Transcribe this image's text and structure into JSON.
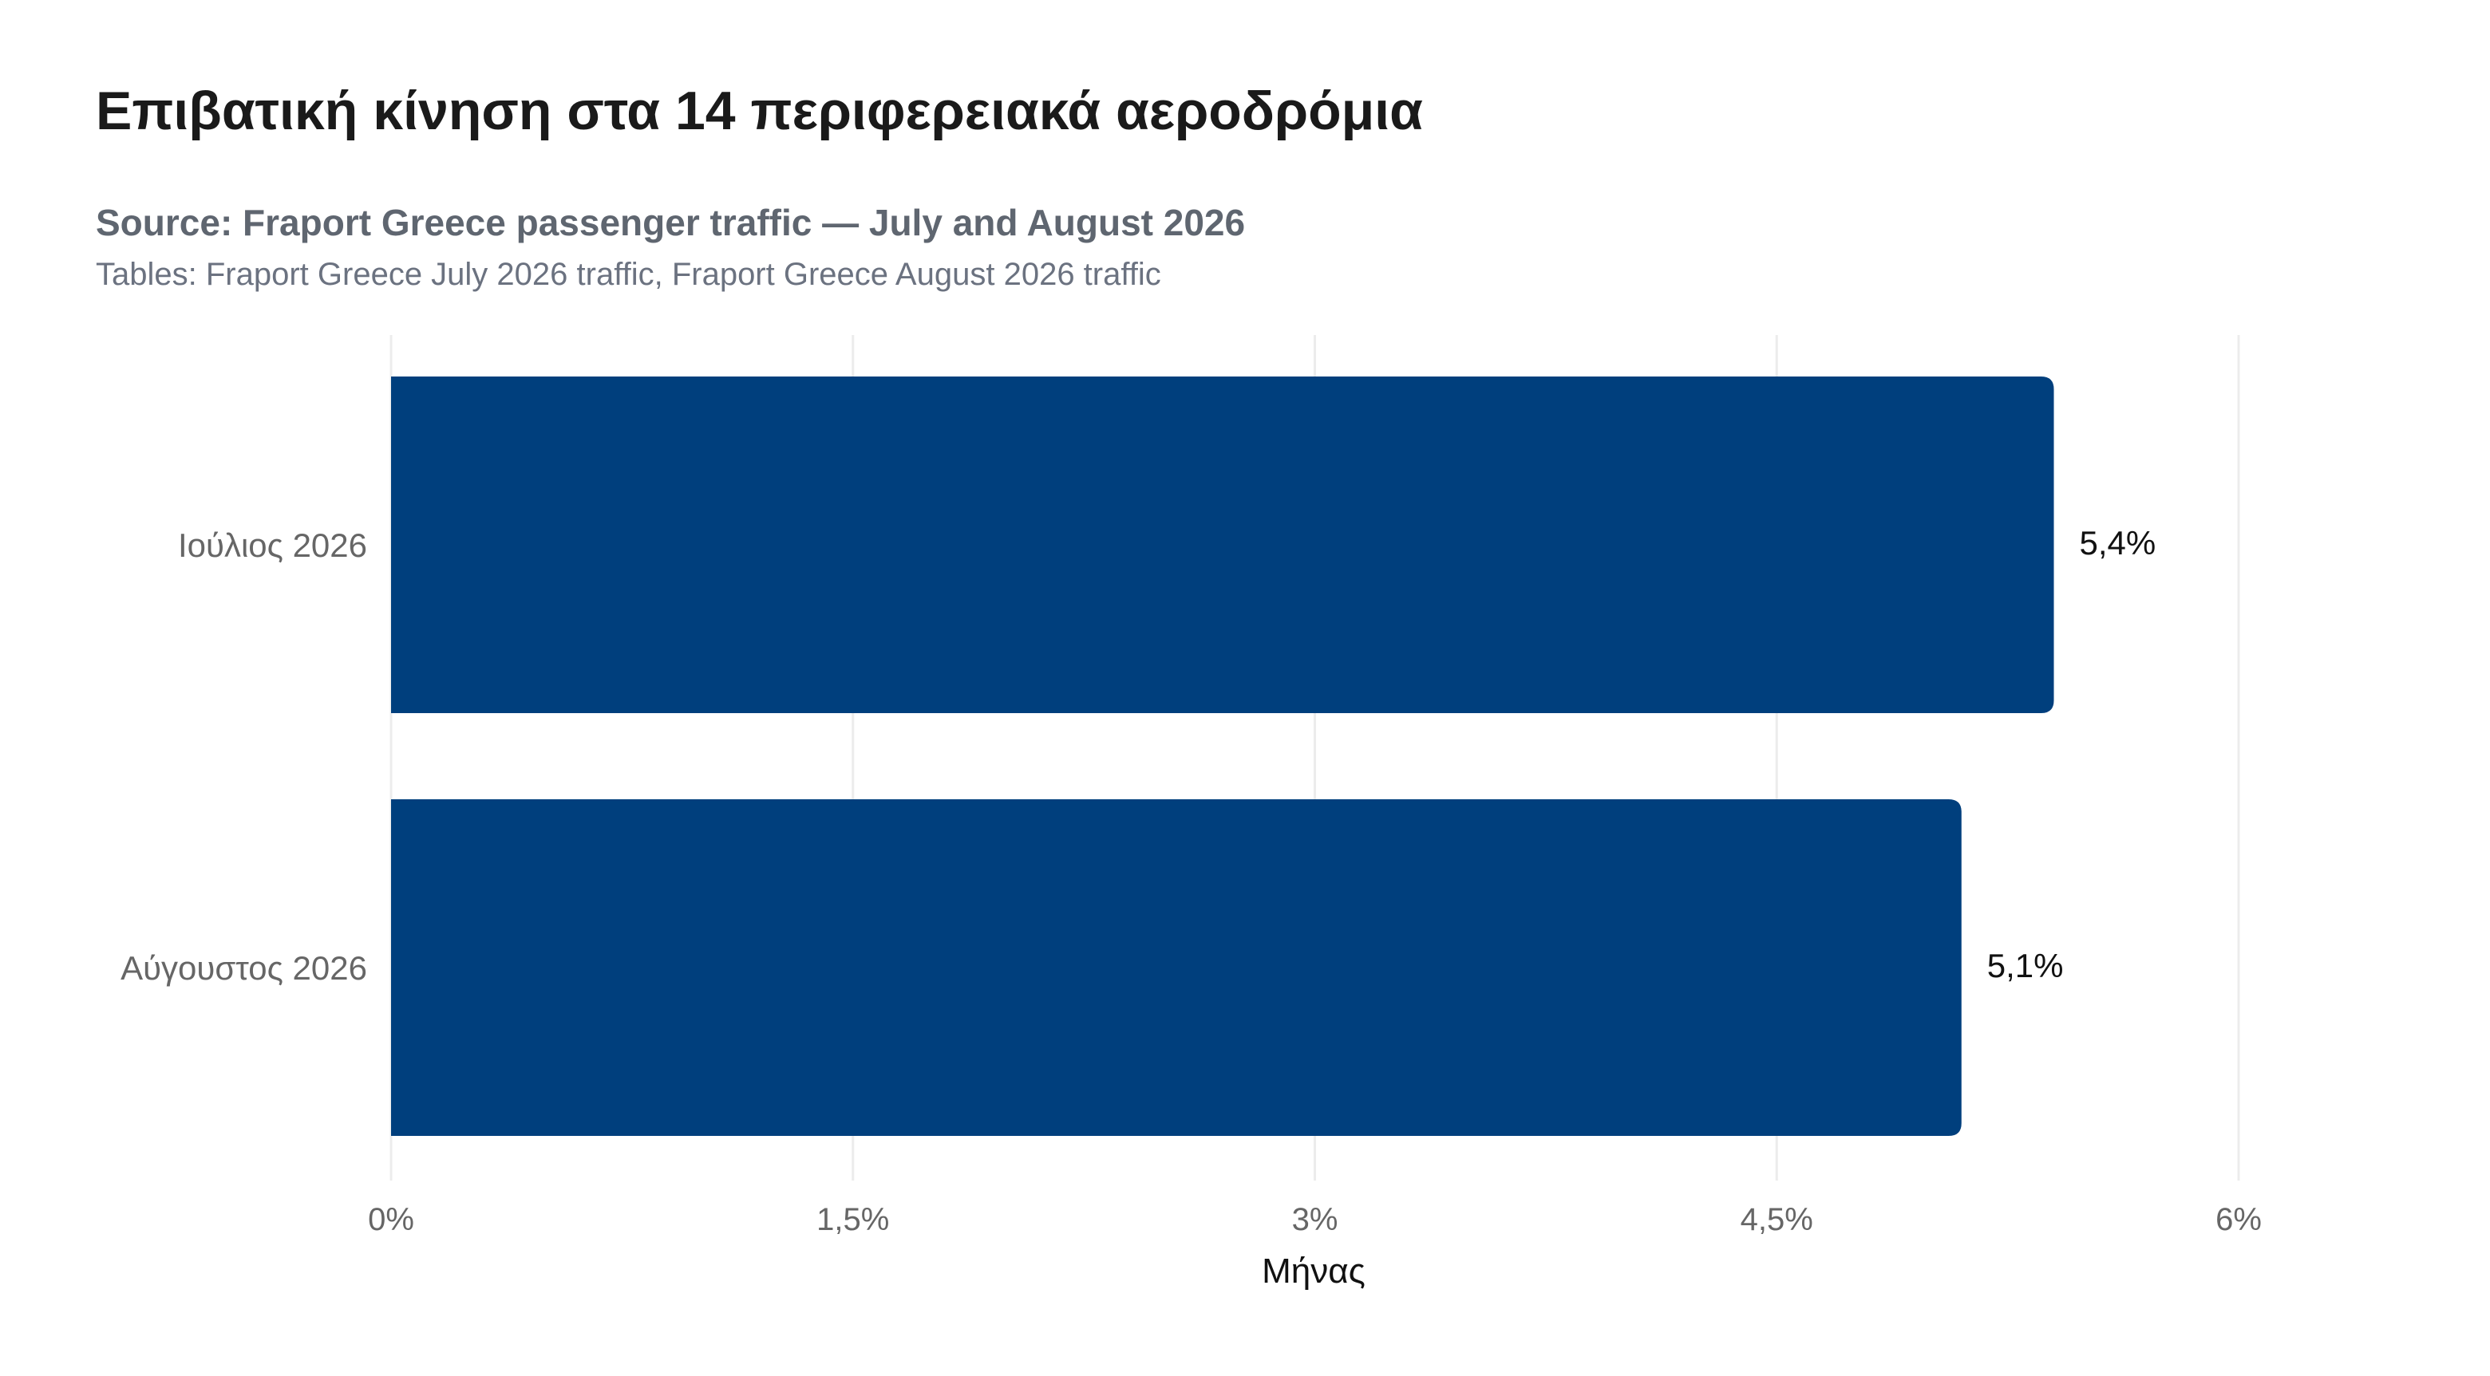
{
  "title": "Επιβατική κίνηση στα 14 περιφερειακά αεροδρόμια",
  "subtitle": "Source: Fraport Greece passenger traffic — July and August 2026",
  "note": "Tables: Fraport Greece July 2026 traffic, Fraport Greece August 2026 traffic",
  "colors": {
    "bar": "#003f7d",
    "grid": "#ececec",
    "tick_text": "#666666",
    "label_text": "#111111"
  },
  "chart_data": {
    "type": "bar",
    "orientation": "horizontal",
    "categories": [
      "Ιούλιος 2026",
      "Αύγουστος 2026"
    ],
    "values": [
      5.4,
      5.1
    ],
    "value_labels": [
      "5,4%",
      "5,1%"
    ],
    "xlabel": "Μήνας",
    "ylabel": "",
    "xlim": [
      0,
      6
    ],
    "ticks": [
      0,
      1.5,
      3,
      4.5,
      6
    ],
    "tick_labels": [
      "0%",
      "1,5%",
      "3%",
      "4,5%",
      "6%"
    ],
    "grid": true
  }
}
